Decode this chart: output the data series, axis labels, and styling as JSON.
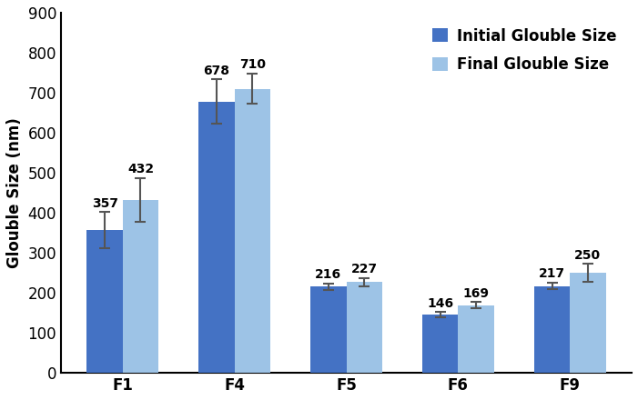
{
  "categories": [
    "F1",
    "F4",
    "F5",
    "F6",
    "F9"
  ],
  "initial_values": [
    357,
    678,
    216,
    146,
    217
  ],
  "final_values": [
    432,
    710,
    227,
    169,
    250
  ],
  "initial_errors": [
    45,
    55,
    8,
    6,
    8
  ],
  "final_errors": [
    55,
    38,
    10,
    8,
    22
  ],
  "initial_color": "#4472C4",
  "final_color": "#9DC3E6",
  "ylabel": "Glouble Size (nm)",
  "ylim": [
    0,
    900
  ],
  "yticks": [
    0,
    100,
    200,
    300,
    400,
    500,
    600,
    700,
    800,
    900
  ],
  "legend_labels": [
    "Initial Glouble Size",
    "Final Glouble Size"
  ],
  "bar_width": 0.32,
  "label_fontsize": 12,
  "tick_fontsize": 12,
  "value_fontsize": 10,
  "legend_fontsize": 12
}
